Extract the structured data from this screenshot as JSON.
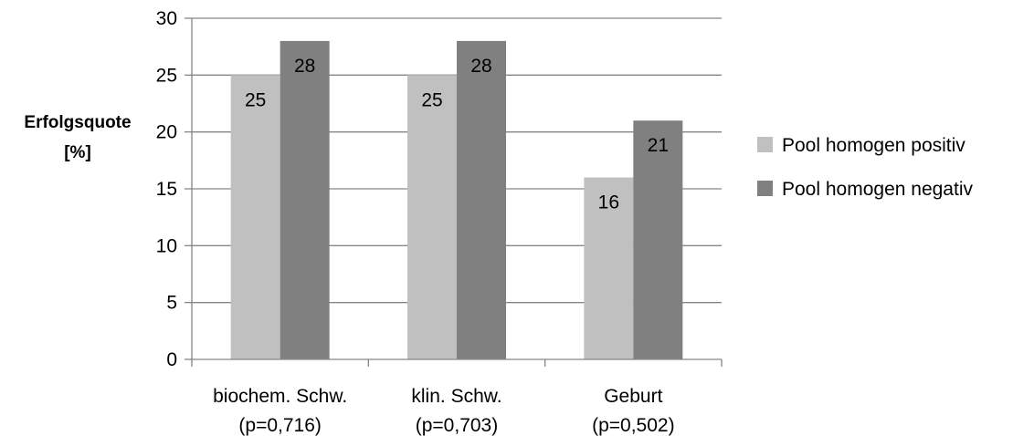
{
  "chart_data": {
    "type": "bar",
    "title": "",
    "ylabel": [
      "Erfolgsquote",
      "[%]"
    ],
    "xlabel": "",
    "categories": [
      [
        "biochem. Schw.",
        "(p=0,716)"
      ],
      [
        "klin. Schw.",
        "(p=0,703)"
      ],
      [
        "Geburt",
        "(p=0,502)"
      ]
    ],
    "series": [
      {
        "name": "Pool homogen positiv",
        "values": [
          25,
          25,
          16
        ],
        "color": "#c0c0c0"
      },
      {
        "name": "Pool homogen negativ",
        "values": [
          28,
          28,
          21
        ],
        "color": "#808080"
      }
    ],
    "ylim": [
      0,
      30
    ],
    "yticks": [
      0,
      5,
      10,
      15,
      20,
      25,
      30
    ],
    "grid": true,
    "legend": "right",
    "data_labels": true
  }
}
